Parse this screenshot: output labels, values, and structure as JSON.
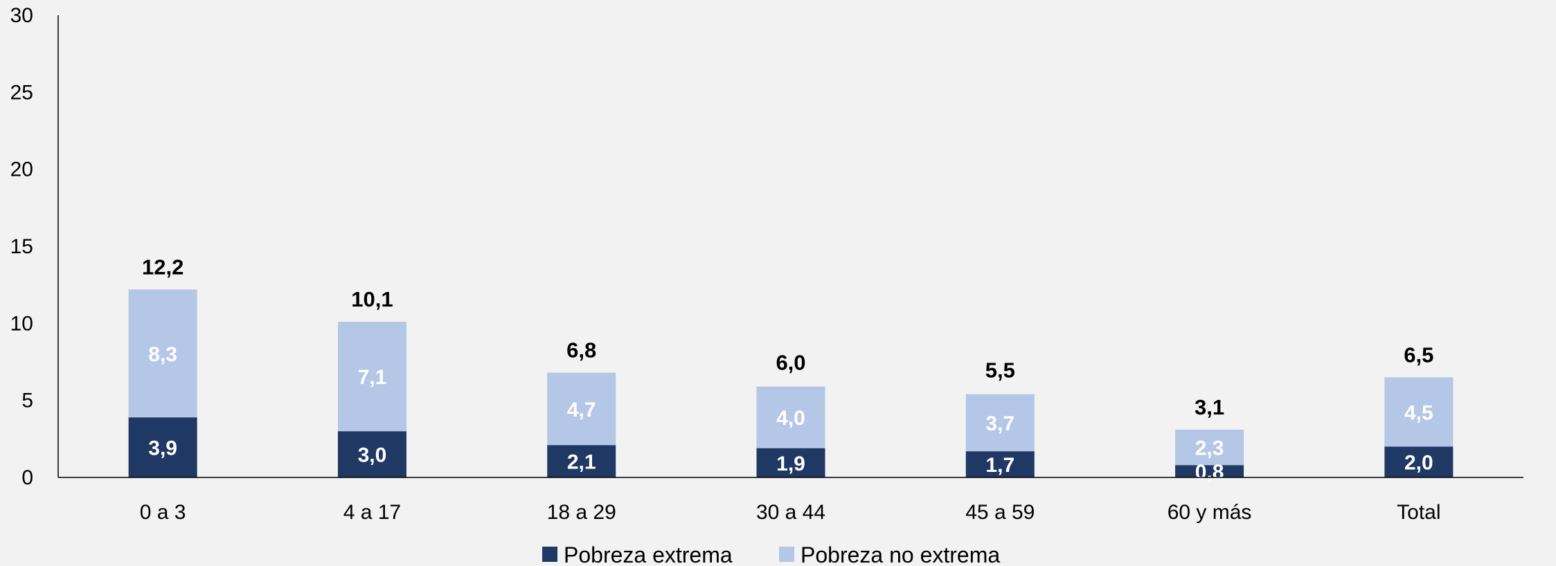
{
  "chart_data": {
    "type": "bar",
    "stacked": true,
    "categories": [
      "0 a 3",
      "4 a 17",
      "18 a 29",
      "30 a 44",
      "45 a 59",
      "60 y más",
      "Total"
    ],
    "series": [
      {
        "name": "Pobreza extrema",
        "color": "#1f3864",
        "values": [
          3.9,
          3.0,
          2.1,
          1.9,
          1.7,
          0.8,
          2.0
        ],
        "labels": [
          "3,9",
          "3,0",
          "2,1",
          "1,9",
          "1,7",
          "0,8",
          "2,0"
        ]
      },
      {
        "name": "Pobreza no extrema",
        "color": "#b4c7e7",
        "values": [
          8.3,
          7.1,
          4.7,
          4.0,
          3.7,
          2.3,
          4.5
        ],
        "labels": [
          "8,3",
          "7,1",
          "4,7",
          "4,0",
          "3,7",
          "2,3",
          "4,5"
        ]
      }
    ],
    "totals": [
      12.2,
      10.1,
      6.8,
      6.0,
      5.5,
      3.1,
      6.5
    ],
    "total_labels": [
      "12,2",
      "10,1",
      "6,8",
      "6,0",
      "5,5",
      "3,1",
      "6,5"
    ],
    "ylim": [
      0,
      30
    ],
    "yticks": [
      "0",
      "5",
      "10",
      "15",
      "20",
      "25",
      "30"
    ],
    "grid": false,
    "legend_position": "bottom"
  }
}
